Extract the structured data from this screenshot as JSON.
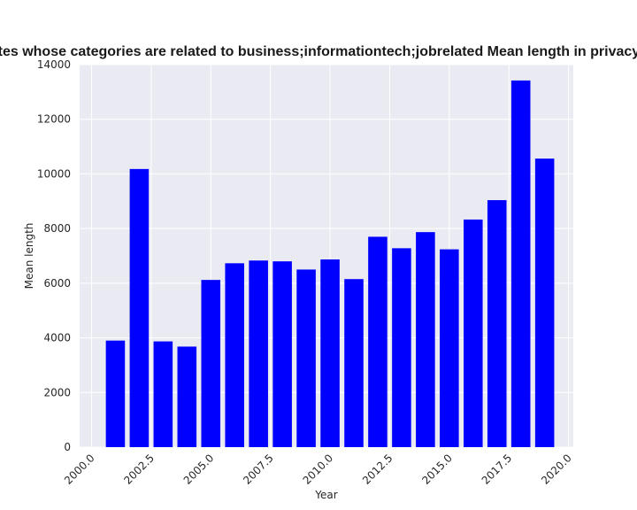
{
  "chart_data": {
    "type": "bar",
    "title": "Websites whose categories are related to business;informationtech;jobrelated Mean length in privacy policies",
    "xlabel": "Year",
    "ylabel": "Mean length",
    "x": [
      2001,
      2002,
      2003,
      2004,
      2005,
      2006,
      2007,
      2008,
      2009,
      2010,
      2011,
      2012,
      2013,
      2014,
      2015,
      2016,
      2017,
      2018,
      2019
    ],
    "values": [
      3900,
      10180,
      3870,
      3680,
      6120,
      6730,
      6830,
      6800,
      6500,
      6870,
      6150,
      7700,
      7280,
      7870,
      7240,
      8330,
      9040,
      13420,
      10560
    ],
    "xlim": [
      1999.5,
      2020.2
    ],
    "ylim": [
      0,
      14000
    ],
    "xticks": [
      "2000.0",
      "2002.5",
      "2005.0",
      "2007.5",
      "2010.0",
      "2012.5",
      "2015.0",
      "2017.5",
      "2020.0"
    ],
    "xtick_values": [
      2000,
      2002.5,
      2005,
      2007.5,
      2010,
      2012.5,
      2015,
      2017.5,
      2020
    ],
    "yticks": [
      "0",
      "2000",
      "4000",
      "6000",
      "8000",
      "10000",
      "12000",
      "14000"
    ],
    "ytick_values": [
      0,
      2000,
      4000,
      6000,
      8000,
      10000,
      12000,
      14000
    ],
    "bar_width": 0.8,
    "grid": true,
    "colors": {
      "bar": "#0000ff",
      "plot_bg": "#eaeaf2",
      "grid": "#ffffff"
    }
  }
}
